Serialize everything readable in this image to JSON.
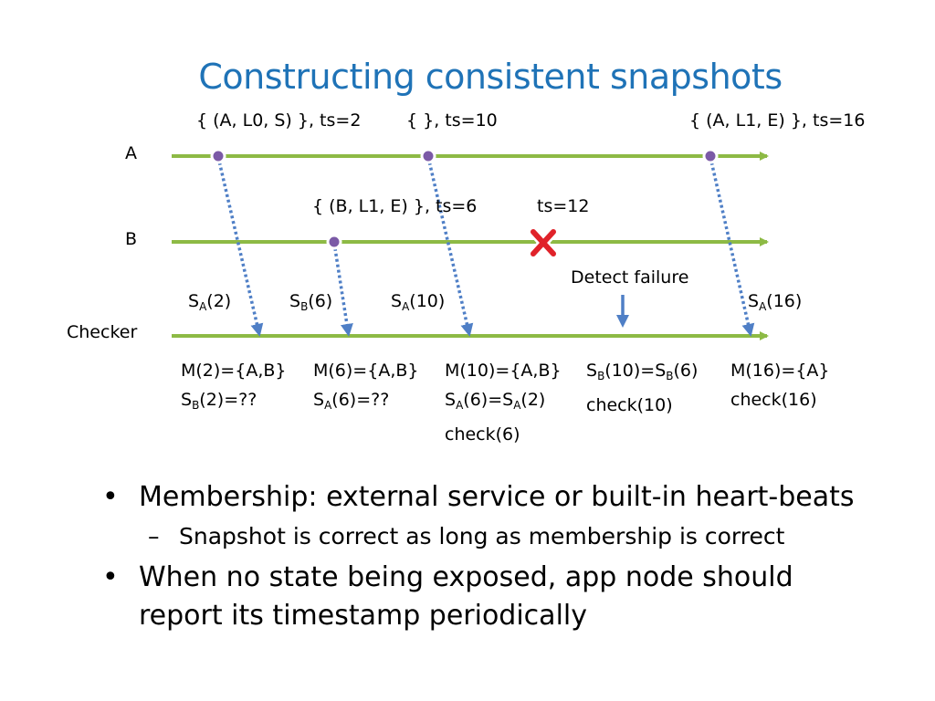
{
  "slide": {
    "title": "Constructing consistent snapshots"
  },
  "diagram": {
    "line_labels": {
      "a": "A",
      "b": "B",
      "checker": "Checker"
    },
    "events": {
      "a1": "{ (A, L0, S) }, ts=2",
      "a2": "{ }, ts=10",
      "a3": "{ (A, L1, E) }, ts=16",
      "b1": "{ (B, L1, E) }, ts=6",
      "b2": "ts=12"
    },
    "detect_failure": "Detect failure",
    "messages": [
      {
        "s": "S",
        "sub": "A",
        "rest": "(2)"
      },
      {
        "s": "S",
        "sub": "B",
        "rest": "(6)"
      },
      {
        "s": "S",
        "sub": "A",
        "rest": "(10)"
      },
      {
        "s": "S",
        "sub": "A",
        "rest": "(16)"
      }
    ],
    "checker_notes": {
      "n1": {
        "l1": "M(2)={A,B}",
        "l2a": "S",
        "l2sub": "B",
        "l2b": "(2)=??"
      },
      "n2": {
        "l1": "M(6)={A,B}",
        "l2a": "S",
        "l2sub": "A",
        "l2b": "(6)=??"
      },
      "n3": {
        "l1": "M(10)={A,B}",
        "l2a": "S",
        "l2sub": "A",
        "l2b": "(6)=S",
        "l2sub2": "A",
        "l2c": "(2)",
        "l3": "check(6)"
      },
      "n4": {
        "l1a": "S",
        "l1sub": "B",
        "l1b": "(10)=S",
        "l1sub2": "B",
        "l1c": "(6)",
        "l2": "check(10)"
      },
      "n5": {
        "l1": "M(16)={A}",
        "l2": "check(16)"
      }
    },
    "colors": {
      "timeline": "#8dba45",
      "message_arrow": "#4f7fc6",
      "event_dot": "#7b5aa6",
      "failure_x": "#e0222a",
      "title": "#1f73b7"
    }
  },
  "bullets": [
    {
      "text": "Membership: external service or built-in heart-beats",
      "sub": [
        "Snapshot is correct as long as membership is correct"
      ]
    },
    {
      "text": "When no state being exposed, app node should report its timestamp periodically",
      "sub": []
    }
  ]
}
